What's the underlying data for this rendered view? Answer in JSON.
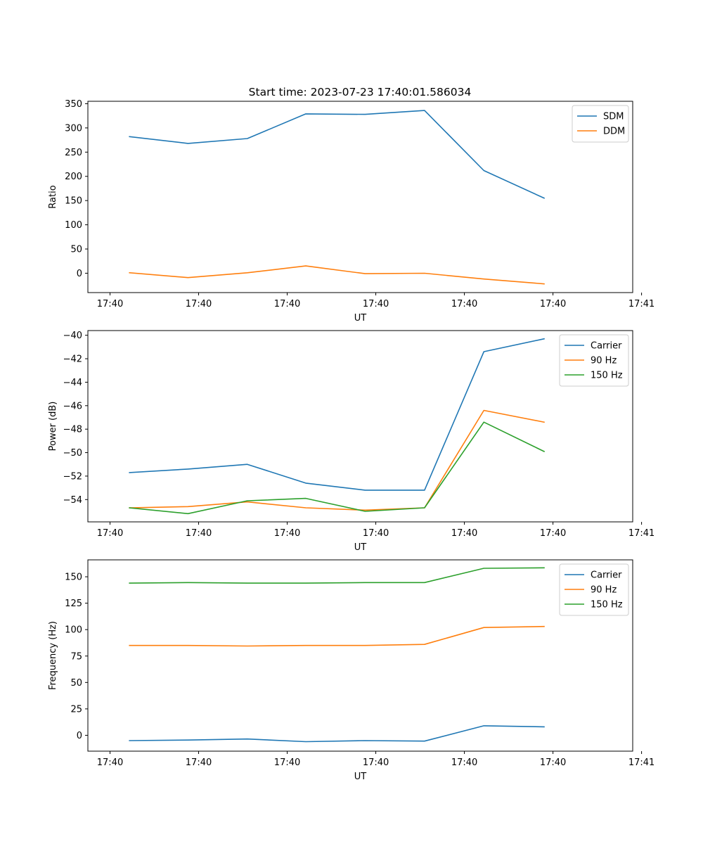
{
  "title": "Start time: 2023-07-23 17:40:01.586034",
  "colors": {
    "c0": "#1f77b4",
    "c1": "#ff7f0e",
    "c2": "#2ca02c"
  },
  "chart_data": [
    {
      "type": "line",
      "title": "Start time: 2023-07-23 17:40:01.586034",
      "xlabel": "UT",
      "ylabel": "Ratio",
      "xlim": [
        -0.25,
        5.9
      ],
      "ylim": [
        -40,
        355
      ],
      "x": [
        0.22,
        0.88,
        1.55,
        2.21,
        2.88,
        3.55,
        4.22,
        4.9
      ],
      "xticks": [
        0,
        1,
        2,
        3,
        4,
        5,
        6
      ],
      "xticklabels": [
        "17:40",
        "17:40",
        "17:40",
        "17:40",
        "17:40",
        "17:40",
        "17:41"
      ],
      "yticks": [
        0,
        50,
        100,
        150,
        200,
        250,
        300,
        350
      ],
      "yticklabels": [
        "0",
        "50",
        "100",
        "150",
        "200",
        "250",
        "300",
        "350"
      ],
      "legend": "top-right",
      "series": [
        {
          "name": "SDM",
          "color": "#1f77b4",
          "values": [
            282,
            268,
            278,
            329,
            328,
            336,
            212,
            155
          ]
        },
        {
          "name": "DDM",
          "color": "#ff7f0e",
          "values": [
            1,
            -9,
            1,
            15,
            -1,
            0,
            -12,
            -22
          ]
        }
      ]
    },
    {
      "type": "line",
      "title": "",
      "xlabel": "UT",
      "ylabel": "Power (dB)",
      "xlim": [
        -0.25,
        5.9
      ],
      "ylim": [
        -55.9,
        -39.6
      ],
      "x": [
        0.22,
        0.88,
        1.55,
        2.21,
        2.88,
        3.55,
        4.22,
        4.9
      ],
      "xticks": [
        0,
        1,
        2,
        3,
        4,
        5,
        6
      ],
      "xticklabels": [
        "17:40",
        "17:40",
        "17:40",
        "17:40",
        "17:40",
        "17:40",
        "17:41"
      ],
      "yticks": [
        -54,
        -52,
        -50,
        -48,
        -46,
        -44,
        -42,
        -40
      ],
      "yticklabels": [
        "−54",
        "−52",
        "−50",
        "−48",
        "−46",
        "−44",
        "−42",
        "−40"
      ],
      "legend": "top-right",
      "series": [
        {
          "name": "Carrier",
          "color": "#1f77b4",
          "values": [
            -51.7,
            -51.4,
            -51.0,
            -52.6,
            -53.2,
            -53.2,
            -41.4,
            -40.3
          ]
        },
        {
          "name": "90 Hz",
          "color": "#ff7f0e",
          "values": [
            -54.7,
            -54.6,
            -54.2,
            -54.7,
            -54.9,
            -54.7,
            -46.4,
            -47.4
          ]
        },
        {
          "name": "150 Hz",
          "color": "#2ca02c",
          "values": [
            -54.7,
            -55.2,
            -54.1,
            -53.9,
            -55.0,
            -54.7,
            -47.4,
            -49.9
          ]
        }
      ]
    },
    {
      "type": "line",
      "title": "",
      "xlabel": "UT",
      "ylabel": "Frequency (Hz)",
      "xlim": [
        -0.25,
        5.9
      ],
      "ylim": [
        -15,
        166
      ],
      "x": [
        0.22,
        0.88,
        1.55,
        2.21,
        2.88,
        3.55,
        4.22,
        4.9
      ],
      "xticks": [
        0,
        1,
        2,
        3,
        4,
        5,
        6
      ],
      "xticklabels": [
        "17:40",
        "17:40",
        "17:40",
        "17:40",
        "17:40",
        "17:40",
        "17:41"
      ],
      "yticks": [
        0,
        25,
        50,
        75,
        100,
        125,
        150
      ],
      "yticklabels": [
        "0",
        "25",
        "50",
        "75",
        "100",
        "125",
        "150"
      ],
      "legend": "top-right",
      "series": [
        {
          "name": "Carrier",
          "color": "#1f77b4",
          "values": [
            -5,
            -4.5,
            -3.5,
            -6,
            -5,
            -5.5,
            9,
            8
          ]
        },
        {
          "name": "90 Hz",
          "color": "#ff7f0e",
          "values": [
            85,
            85,
            84.5,
            85,
            85,
            86,
            102,
            103
          ]
        },
        {
          "name": "150 Hz",
          "color": "#2ca02c",
          "values": [
            144,
            144.5,
            144,
            144,
            144.5,
            144.5,
            158,
            158.5
          ]
        }
      ]
    }
  ]
}
